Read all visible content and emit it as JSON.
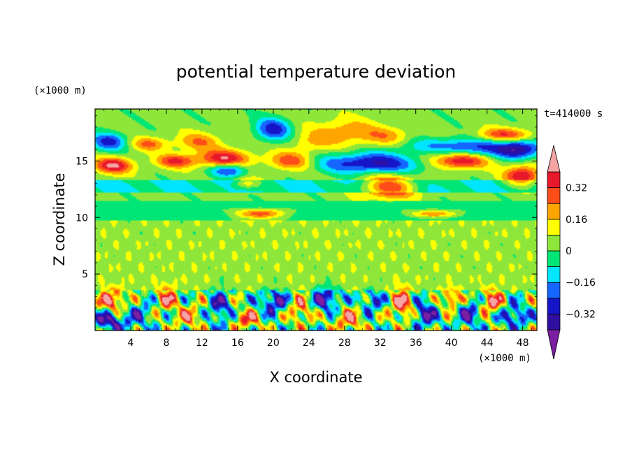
{
  "chart_data": {
    "type": "heatmap",
    "title": "potential temperature deviation",
    "xlabel": "X coordinate",
    "ylabel": "Z coordinate",
    "x_unit": "(×1000 m)",
    "y_unit": "(×1000 m)",
    "time_label": "t=414000 s",
    "xlim": [
      0,
      49.6
    ],
    "ylim": [
      0,
      19.6
    ],
    "x_ticks": [
      4,
      8,
      12,
      16,
      20,
      24,
      28,
      32,
      36,
      40,
      44,
      48
    ],
    "y_ticks": [
      5,
      10,
      15
    ],
    "colorbar": {
      "levels": [
        -0.4,
        -0.32,
        -0.24,
        -0.16,
        -0.08,
        0,
        0.08,
        0.16,
        0.24,
        0.32,
        0.4
      ],
      "labeled_levels": [
        0.32,
        0.16,
        0,
        -0.16,
        -0.32
      ],
      "colors": [
        "#7b1fa2",
        "#2e0fa0",
        "#1616c8",
        "#1565ff",
        "#00e5ff",
        "#00e676",
        "#8ee63a",
        "#ffff00",
        "#ffa500",
        "#ff4d1a",
        "#e8192c",
        "#f5a3a3"
      ],
      "extend": "both"
    },
    "blobs": [
      {
        "x": 1.5,
        "z": 16.7,
        "rx": 2.0,
        "rz": 0.8,
        "v": -0.3
      },
      {
        "x": 2.0,
        "z": 14.6,
        "rx": 2.2,
        "rz": 0.7,
        "v": 0.38
      },
      {
        "x": 6.0,
        "z": 16.5,
        "rx": 2.0,
        "rz": 0.6,
        "v": 0.22
      },
      {
        "x": 9.0,
        "z": 15.0,
        "rx": 2.2,
        "rz": 0.6,
        "v": 0.3
      },
      {
        "x": 11.5,
        "z": 16.7,
        "rx": 2.5,
        "rz": 0.8,
        "v": 0.2
      },
      {
        "x": 14.5,
        "z": 15.2,
        "rx": 3.0,
        "rz": 0.8,
        "v": 0.36
      },
      {
        "x": 15.0,
        "z": 14.2,
        "rx": 2.0,
        "rz": 0.6,
        "v": -0.32
      },
      {
        "x": 17.0,
        "z": 13.0,
        "rx": 1.5,
        "rz": 0.5,
        "v": 0.2
      },
      {
        "x": 20.0,
        "z": 17.8,
        "rx": 2.0,
        "rz": 1.0,
        "v": -0.32
      },
      {
        "x": 22.0,
        "z": 15.0,
        "rx": 2.5,
        "rz": 0.8,
        "v": 0.28
      },
      {
        "x": 24.0,
        "z": 16.5,
        "rx": 2.0,
        "rz": 0.8,
        "v": 0.1
      },
      {
        "x": 28.0,
        "z": 17.5,
        "rx": 4.0,
        "rz": 1.2,
        "v": 0.2
      },
      {
        "x": 31.0,
        "z": 14.8,
        "rx": 6.0,
        "rz": 0.9,
        "v": -0.36
      },
      {
        "x": 33.0,
        "z": 17.2,
        "rx": 2.5,
        "rz": 0.8,
        "v": 0.15
      },
      {
        "x": 33.0,
        "z": 12.7,
        "rx": 3.0,
        "rz": 1.0,
        "v": 0.38
      },
      {
        "x": 38.0,
        "z": 15.6,
        "rx": 3.0,
        "rz": 0.8,
        "v": 0.12
      },
      {
        "x": 41.0,
        "z": 16.2,
        "rx": 6.0,
        "rz": 0.8,
        "v": -0.3
      },
      {
        "x": 41.0,
        "z": 15.0,
        "rx": 3.0,
        "rz": 0.7,
        "v": 0.38
      },
      {
        "x": 46.0,
        "z": 17.3,
        "rx": 3.0,
        "rz": 0.6,
        "v": 0.3
      },
      {
        "x": 47.5,
        "z": 16.0,
        "rx": 2.5,
        "rz": 0.8,
        "v": -0.36
      },
      {
        "x": 48.0,
        "z": 13.7,
        "rx": 2.0,
        "rz": 0.9,
        "v": 0.38
      },
      {
        "x": 18.5,
        "z": 10.3,
        "rx": 3.0,
        "rz": 0.4,
        "v": 0.36
      },
      {
        "x": 38.0,
        "z": 10.3,
        "rx": 3.0,
        "rz": 0.3,
        "v": 0.3
      },
      {
        "x": 2.0,
        "z": 2.7,
        "rx": 1.5,
        "rz": 0.9,
        "v": 0.38
      },
      {
        "x": 1.5,
        "z": 0.8,
        "rx": 2.0,
        "rz": 0.8,
        "v": -0.36
      },
      {
        "x": 5.0,
        "z": 1.5,
        "rx": 1.5,
        "rz": 1.2,
        "v": -0.2
      },
      {
        "x": 8.0,
        "z": 2.8,
        "rx": 1.2,
        "rz": 1.0,
        "v": 0.3
      },
      {
        "x": 10.5,
        "z": 1.2,
        "rx": 1.5,
        "rz": 1.0,
        "v": 0.25
      },
      {
        "x": 14.0,
        "z": 2.0,
        "rx": 1.2,
        "rz": 1.5,
        "v": -0.3
      },
      {
        "x": 17.0,
        "z": 1.0,
        "rx": 1.5,
        "rz": 0.8,
        "v": 0.3
      },
      {
        "x": 20.0,
        "z": 2.5,
        "rx": 1.5,
        "rz": 1.0,
        "v": -0.36
      },
      {
        "x": 23.0,
        "z": 1.8,
        "rx": 1.2,
        "rz": 1.2,
        "v": 0.28
      },
      {
        "x": 26.0,
        "z": 2.8,
        "rx": 1.5,
        "rz": 1.0,
        "v": -0.38
      },
      {
        "x": 28.5,
        "z": 1.0,
        "rx": 1.5,
        "rz": 1.0,
        "v": 0.3
      },
      {
        "x": 31.0,
        "z": 2.5,
        "rx": 1.2,
        "rz": 1.0,
        "v": -0.25
      },
      {
        "x": 34.5,
        "z": 2.3,
        "rx": 1.2,
        "rz": 1.3,
        "v": 0.38
      },
      {
        "x": 37.0,
        "z": 1.5,
        "rx": 1.3,
        "rz": 1.2,
        "v": -0.35
      },
      {
        "x": 40.0,
        "z": 2.8,
        "rx": 1.0,
        "rz": 0.8,
        "v": 0.38
      },
      {
        "x": 42.0,
        "z": 1.5,
        "rx": 1.3,
        "rz": 1.2,
        "v": -0.3
      },
      {
        "x": 44.5,
        "z": 2.5,
        "rx": 1.3,
        "rz": 1.0,
        "v": 0.36
      },
      {
        "x": 47.0,
        "z": 1.3,
        "rx": 1.5,
        "rz": 1.0,
        "v": -0.32
      }
    ],
    "grid": false,
    "legend_placement": "right"
  }
}
